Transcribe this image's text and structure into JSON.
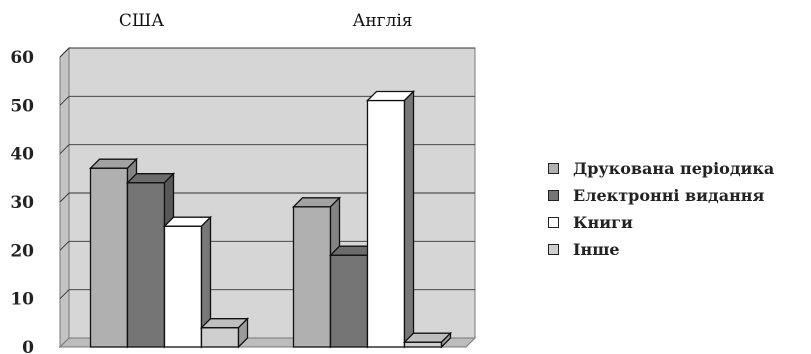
{
  "chart_data": {
    "type": "bar",
    "categories": [
      "США",
      "Англія"
    ],
    "series": [
      {
        "name": "Друкована періодика",
        "values": [
          37,
          29
        ],
        "color": "#b0b0b0"
      },
      {
        "name": "Електронні видання",
        "values": [
          34,
          19
        ],
        "color": "#757575"
      },
      {
        "name": "Книги",
        "values": [
          25,
          51
        ],
        "color": "#ffffff"
      },
      {
        "name": "Інше",
        "values": [
          4,
          1
        ],
        "color": "#cfcfcf"
      }
    ],
    "ylim": [
      0,
      60
    ],
    "yticks": [
      "0",
      "10",
      "20",
      "30",
      "40",
      "50",
      "60"
    ],
    "grid": true,
    "legend_position": "right",
    "style": "3d-clustered-column",
    "wall_color": "#d6d6d6"
  }
}
